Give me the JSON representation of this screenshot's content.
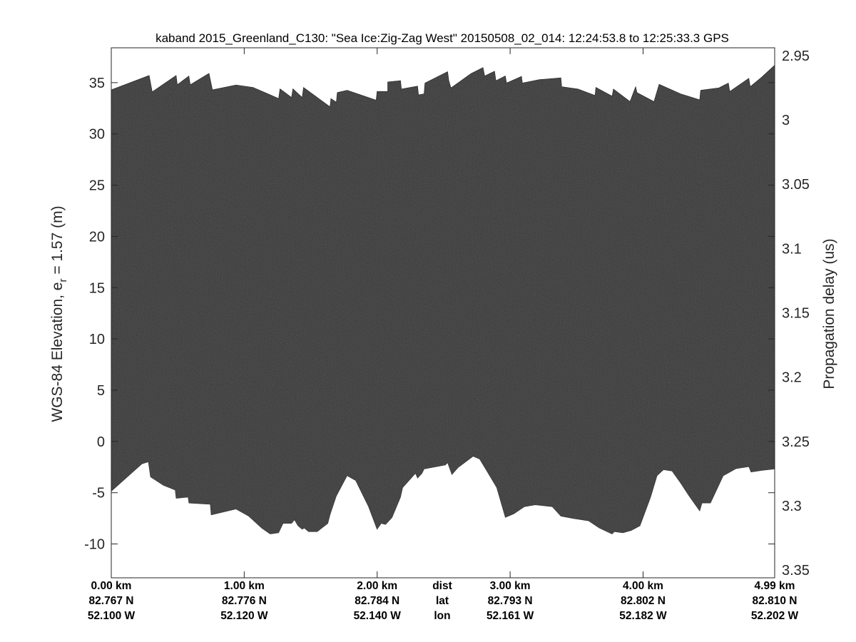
{
  "chart_data": {
    "type": "heatmap",
    "title": "kaband 2015_Greenland_C130: \"Sea Ice:Zig-Zag West\"  20150508_02_014: 12:24:53.8 to 12:25:33.3 GPS",
    "ylabel_left": "WGS-84 Elevation, e",
    "ylabel_left_sub": "r",
    "ylabel_left_rest": " = 1.57 (m)",
    "ylabel_right": "Propagation delay (us)",
    "ylim_left": [
      -13.3,
      38.4
    ],
    "ylim_right": [
      3.356,
      2.944
    ],
    "xlim_km": [
      0,
      4.99
    ],
    "yticks_left": [
      35,
      30,
      25,
      20,
      15,
      10,
      5,
      0,
      -5,
      -10
    ],
    "yticks_right": [
      "2.95",
      "3",
      "3.05",
      "3.1",
      "3.15",
      "3.2",
      "3.25",
      "3.3",
      "3.35"
    ],
    "yticks_right_values": [
      2.95,
      3.0,
      3.05,
      3.1,
      3.15,
      3.2,
      3.25,
      3.3,
      3.35
    ],
    "xticks": [
      {
        "km": 0,
        "dist": "0.00 km",
        "lat": "82.767 N",
        "lon": "52.100 W"
      },
      {
        "km": 1,
        "dist": "1.00 km",
        "lat": "82.776 N",
        "lon": "52.120 W"
      },
      {
        "km": 2,
        "dist": "2.00 km",
        "lat": "82.784 N",
        "lon": "52.140 W"
      },
      {
        "km": 3,
        "dist": "3.00 km",
        "lat": "82.793 N",
        "lon": "52.161 W"
      },
      {
        "km": 4,
        "dist": "4.00 km",
        "lat": "82.802 N",
        "lon": "52.182 W"
      },
      {
        "km": 4.99,
        "dist": "4.99 km",
        "lat": "82.810 N",
        "lon": "52.202 W"
      }
    ],
    "row_labels": {
      "dist": "dist",
      "lat": "lat",
      "lon": "lon"
    },
    "colormap": "gray",
    "echo_color": "#2b2b2b",
    "top_boundary_km_elev": [
      [
        0,
        34.3
      ],
      [
        0.285,
        35.7
      ],
      [
        0.308,
        34.1
      ],
      [
        0.488,
        35.7
      ],
      [
        0.497,
        34.8
      ],
      [
        0.584,
        35.65
      ],
      [
        0.594,
        34.8
      ],
      [
        0.735,
        35.9
      ],
      [
        0.761,
        34.3
      ],
      [
        0.938,
        34.77
      ],
      [
        1.066,
        34.54
      ],
      [
        1.259,
        33.45
      ],
      [
        1.269,
        34.4
      ],
      [
        1.356,
        33.56
      ],
      [
        1.366,
        34.4
      ],
      [
        1.436,
        33.56
      ],
      [
        1.446,
        34.54
      ],
      [
        1.645,
        32.64
      ],
      [
        1.652,
        33.45
      ],
      [
        1.693,
        33.1
      ],
      [
        1.7,
        34.03
      ],
      [
        1.774,
        34.26
      ],
      [
        1.992,
        33.29
      ],
      [
        1.999,
        34.14
      ],
      [
        2.079,
        34.14
      ],
      [
        2.079,
        35.07
      ],
      [
        2.176,
        35.19
      ],
      [
        2.182,
        34.38
      ],
      [
        2.304,
        34.66
      ],
      [
        2.311,
        33.8
      ],
      [
        2.353,
        33.91
      ],
      [
        2.359,
        34.96
      ],
      [
        2.53,
        36.07
      ],
      [
        2.539,
        35.19
      ],
      [
        2.555,
        34.49
      ],
      [
        2.706,
        35.89
      ],
      [
        2.796,
        36.47
      ],
      [
        2.809,
        35.65
      ],
      [
        2.883,
        36.12
      ],
      [
        2.893,
        35.19
      ],
      [
        2.964,
        35.65
      ],
      [
        2.973,
        34.96
      ],
      [
        3.086,
        35.61
      ],
      [
        3.092,
        34.96
      ],
      [
        3.221,
        35.3
      ],
      [
        3.382,
        35.47
      ],
      [
        3.388,
        34.61
      ],
      [
        3.51,
        34.38
      ],
      [
        3.639,
        33.75
      ],
      [
        3.645,
        34.54
      ],
      [
        3.767,
        33.68
      ],
      [
        3.777,
        34.38
      ],
      [
        3.902,
        33.15
      ],
      [
        3.944,
        34.61
      ],
      [
        3.954,
        34.03
      ],
      [
        4.082,
        33.15
      ],
      [
        4.121,
        34.84
      ],
      [
        4.282,
        33.91
      ],
      [
        4.426,
        33.33
      ],
      [
        4.433,
        34.26
      ],
      [
        4.571,
        34.49
      ],
      [
        4.642,
        34.96
      ],
      [
        4.652,
        34.14
      ],
      [
        4.796,
        35.42
      ],
      [
        4.806,
        34.61
      ],
      [
        4.893,
        35.54
      ],
      [
        4.99,
        36.7
      ]
    ],
    "bottom_boundary_km_elev": [
      [
        0,
        -4.85
      ],
      [
        0.231,
        -2.18
      ],
      [
        0.279,
        -1.99
      ],
      [
        0.295,
        -3.46
      ],
      [
        0.391,
        -4.27
      ],
      [
        0.481,
        -4.74
      ],
      [
        0.488,
        -5.55
      ],
      [
        0.578,
        -5.43
      ],
      [
        0.584,
        -6.01
      ],
      [
        0.745,
        -6.13
      ],
      [
        0.751,
        -7.17
      ],
      [
        0.938,
        -6.59
      ],
      [
        1.034,
        -7.29
      ],
      [
        1.131,
        -8.45
      ],
      [
        1.195,
        -9.03
      ],
      [
        1.259,
        -8.91
      ],
      [
        1.292,
        -7.99
      ],
      [
        1.356,
        -7.99
      ],
      [
        1.378,
        -7.64
      ],
      [
        1.404,
        -8.22
      ],
      [
        1.436,
        -8.57
      ],
      [
        1.452,
        -8.45
      ],
      [
        1.484,
        -8.8
      ],
      [
        1.549,
        -8.8
      ],
      [
        1.629,
        -7.99
      ],
      [
        1.645,
        -7.17
      ],
      [
        1.693,
        -5.32
      ],
      [
        1.774,
        -3.34
      ],
      [
        1.838,
        -3.81
      ],
      [
        1.935,
        -6.36
      ],
      [
        1.999,
        -8.57
      ],
      [
        2.031,
        -7.99
      ],
      [
        2.063,
        -8.1
      ],
      [
        2.112,
        -7.41
      ],
      [
        2.176,
        -5.43
      ],
      [
        2.192,
        -4.5
      ],
      [
        2.224,
        -4.04
      ],
      [
        2.288,
        -3.11
      ],
      [
        2.304,
        -3.58
      ],
      [
        2.337,
        -3.11
      ],
      [
        2.353,
        -2.69
      ],
      [
        2.513,
        -2.3
      ],
      [
        2.53,
        -2.07
      ],
      [
        2.562,
        -3.23
      ],
      [
        2.61,
        -2.53
      ],
      [
        2.722,
        -1.44
      ],
      [
        2.771,
        -1.72
      ],
      [
        2.819,
        -2.76
      ],
      [
        2.899,
        -4.5
      ],
      [
        2.964,
        -7.41
      ],
      [
        3.028,
        -7.06
      ],
      [
        3.108,
        -6.36
      ],
      [
        3.189,
        -6.18
      ],
      [
        3.317,
        -6.36
      ],
      [
        3.382,
        -7.29
      ],
      [
        3.478,
        -7.52
      ],
      [
        3.591,
        -7.75
      ],
      [
        3.671,
        -8.45
      ],
      [
        3.767,
        -9.03
      ],
      [
        3.784,
        -8.8
      ],
      [
        3.848,
        -8.91
      ],
      [
        3.912,
        -8.68
      ],
      [
        3.977,
        -8.22
      ],
      [
        4.057,
        -5.43
      ],
      [
        4.105,
        -3.34
      ],
      [
        4.153,
        -2.76
      ],
      [
        4.218,
        -2.88
      ],
      [
        4.282,
        -4.04
      ],
      [
        4.346,
        -5.32
      ],
      [
        4.426,
        -6.78
      ],
      [
        4.443,
        -6.01
      ],
      [
        4.507,
        -6.01
      ],
      [
        4.603,
        -3.34
      ],
      [
        4.636,
        -3.11
      ],
      [
        4.7,
        -2.65
      ],
      [
        4.796,
        -2.46
      ],
      [
        4.812,
        -2.99
      ],
      [
        4.893,
        -2.83
      ],
      [
        4.99,
        -2.69
      ]
    ]
  }
}
